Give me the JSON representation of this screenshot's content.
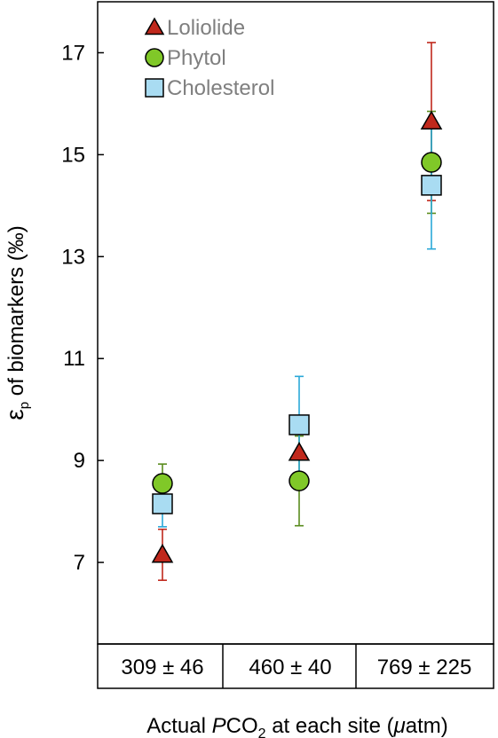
{
  "chart_data": {
    "type": "scatter",
    "xlabel_prefix": "Actual ",
    "xlabel_italic": "P",
    "xlabel_mid": "CO",
    "xlabel_sub": "2",
    "xlabel_rest": " at each site (",
    "xlabel_unit_italic": "μ",
    "xlabel_unit_rest": "atm)",
    "ylabel_symbol": "ε",
    "ylabel_sub": "p",
    "ylabel_rest": " of biomarkers (‰)",
    "categories": [
      "309 ± 46",
      "460 ± 40",
      "769 ± 225"
    ],
    "ylim": [
      5.4,
      18
    ],
    "yticks": [
      7,
      9,
      11,
      13,
      15,
      17
    ],
    "grid": false,
    "legend_position": "top-left",
    "series": [
      {
        "name": "Loliolide",
        "marker": "triangle",
        "color": "#c0281c",
        "error_color": "#c0281c",
        "values": [
          7.15,
          9.15,
          15.65
        ],
        "errors": [
          0.5,
          0.0,
          1.55
        ]
      },
      {
        "name": "Phytol",
        "marker": "circle",
        "color": "#80c828",
        "error_color": "#5a8c1e",
        "values": [
          8.55,
          8.6,
          14.85
        ],
        "errors": [
          0.38,
          0.88,
          1.0
        ]
      },
      {
        "name": "Cholesterol",
        "marker": "square",
        "color": "#a9dcf2",
        "error_color": "#2aa8d8",
        "values": [
          8.15,
          9.7,
          14.4
        ],
        "errors": [
          0.45,
          0.95,
          1.25
        ]
      }
    ]
  }
}
